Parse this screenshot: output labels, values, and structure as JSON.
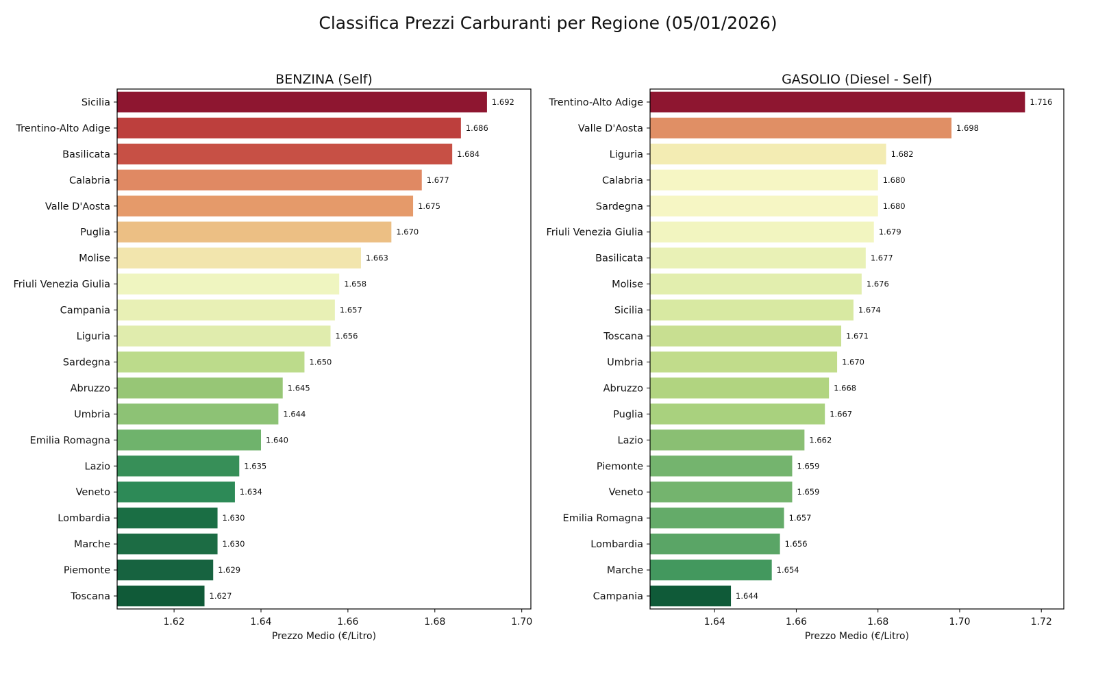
{
  "chart_data": [
    {
      "type": "bar",
      "orientation": "horizontal",
      "title": "BENZINA (Self)",
      "xlabel": "Prezzo Medio (€/Litro)",
      "ylabel": "",
      "xlim": [
        1.6069,
        1.7021
      ],
      "xticks": [
        1.62,
        1.64,
        1.66,
        1.68,
        1.7
      ],
      "xtick_labels": [
        "1.62",
        "1.64",
        "1.66",
        "1.68",
        "1.70"
      ],
      "grid": false,
      "categories": [
        "Sicilia",
        "Trentino-Alto Adige",
        "Basilicata",
        "Calabria",
        "Valle D'Aosta",
        "Puglia",
        "Molise",
        "Friuli Venezia Giulia",
        "Campania",
        "Liguria",
        "Sardegna",
        "Abruzzo",
        "Umbria",
        "Emilia Romagna",
        "Lazio",
        "Veneto",
        "Lombardia",
        "Marche",
        "Piemonte",
        "Toscana"
      ],
      "values": [
        1.692,
        1.686,
        1.684,
        1.677,
        1.675,
        1.67,
        1.663,
        1.658,
        1.657,
        1.656,
        1.65,
        1.645,
        1.644,
        1.64,
        1.635,
        1.634,
        1.63,
        1.63,
        1.629,
        1.627
      ],
      "value_labels": [
        "1.692",
        "1.686",
        "1.684",
        "1.677",
        "1.675",
        "1.670",
        "1.663",
        "1.658",
        "1.657",
        "1.656",
        "1.650",
        "1.645",
        "1.644",
        "1.640",
        "1.635",
        "1.634",
        "1.630",
        "1.630",
        "1.629",
        "1.627"
      ],
      "colors": [
        "#8e1630",
        "#bd3f3d",
        "#c75045",
        "#e08963",
        "#e59a6a",
        "#ecbf84",
        "#f2e5ad",
        "#eff5c0",
        "#e8f0b5",
        "#e0ecad",
        "#bcdb8b",
        "#97c676",
        "#8dc275",
        "#6fb36c",
        "#378f58",
        "#2d8a57",
        "#1a6e44",
        "#1c6c44",
        "#176340",
        "#105a38"
      ]
    },
    {
      "type": "bar",
      "orientation": "horizontal",
      "title": "GASOLIO (Diesel - Self)",
      "xlabel": "Prezzo Medio (€/Litro)",
      "ylabel": "",
      "xlim": [
        1.6242,
        1.7255
      ],
      "xticks": [
        1.64,
        1.66,
        1.68,
        1.7,
        1.72
      ],
      "xtick_labels": [
        "1.64",
        "1.66",
        "1.68",
        "1.70",
        "1.72"
      ],
      "grid": false,
      "categories": [
        "Trentino-Alto Adige",
        "Valle D'Aosta",
        "Liguria",
        "Calabria",
        "Sardegna",
        "Friuli Venezia Giulia",
        "Basilicata",
        "Molise",
        "Sicilia",
        "Toscana",
        "Umbria",
        "Abruzzo",
        "Puglia",
        "Lazio",
        "Piemonte",
        "Veneto",
        "Emilia Romagna",
        "Lombardia",
        "Marche",
        "Campania"
      ],
      "values": [
        1.716,
        1.698,
        1.682,
        1.68,
        1.68,
        1.679,
        1.677,
        1.676,
        1.674,
        1.671,
        1.67,
        1.668,
        1.667,
        1.662,
        1.659,
        1.659,
        1.657,
        1.656,
        1.654,
        1.644
      ],
      "value_labels": [
        "1.716",
        "1.698",
        "1.682",
        "1.680",
        "1.680",
        "1.679",
        "1.677",
        "1.676",
        "1.674",
        "1.671",
        "1.670",
        "1.668",
        "1.667",
        "1.662",
        "1.659",
        "1.659",
        "1.657",
        "1.656",
        "1.654",
        "1.644"
      ],
      "colors": [
        "#8e1630",
        "#e08f65",
        "#f3ecb3",
        "#f6f6c4",
        "#f6f6c4",
        "#f2f5c0",
        "#e9f1b6",
        "#e2eeae",
        "#d8e9a2",
        "#c8df91",
        "#c1dc8b",
        "#b1d480",
        "#a9d17e",
        "#8abf73",
        "#74b46e",
        "#74b46e",
        "#64ab69",
        "#5aa566",
        "#43985e",
        "#0f5a38"
      ]
    }
  ],
  "figure": {
    "title": "Classifica Prezzi Carburanti per Regione (05/01/2026)"
  }
}
